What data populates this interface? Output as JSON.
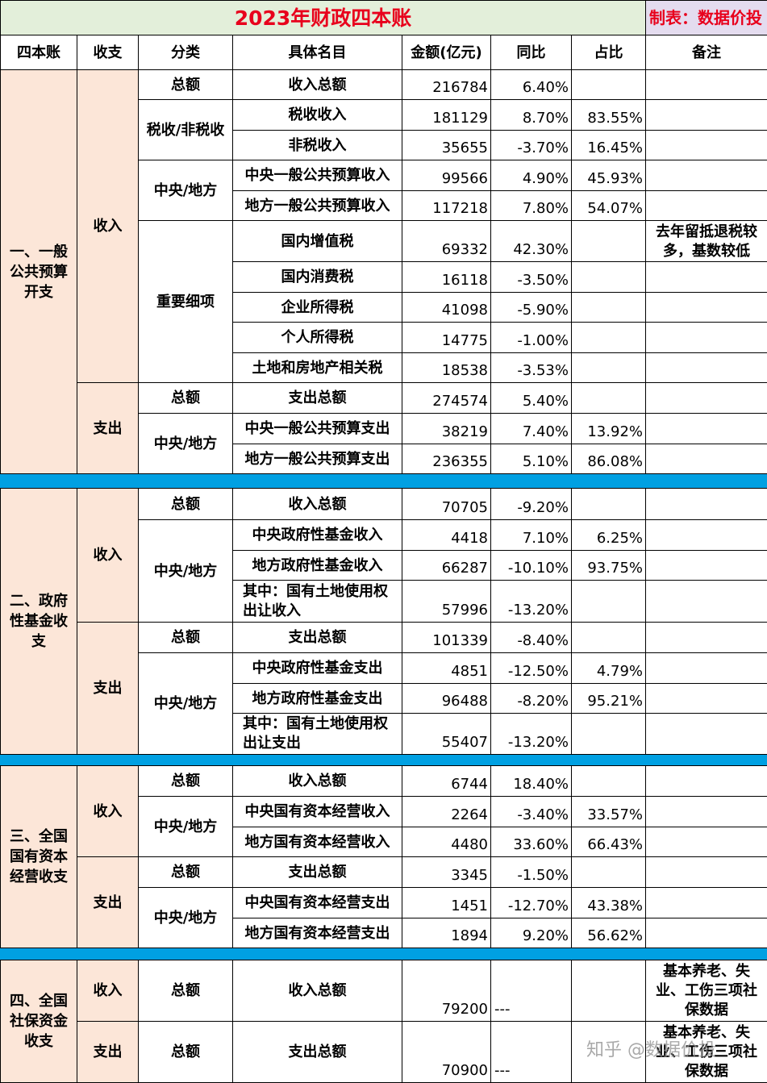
{
  "title": "2023年财政四本账",
  "maker": "制表：数据价投",
  "headers": [
    "四本账",
    "收支",
    "分类",
    "具体名目",
    "金额(亿元)",
    "同比",
    "占比",
    "备注"
  ],
  "sections": {
    "s1": {
      "name": "一、一般公共预算开支",
      "income": "收入",
      "expense": "支出",
      "rows": [
        {
          "cat": "总额",
          "name": "收入总额",
          "amount": "216784",
          "yoy": "6.40%",
          "share": "",
          "note": ""
        },
        {
          "cat": "税收/非税收",
          "name": "税收收入",
          "amount": "181129",
          "yoy": "8.70%",
          "share": "83.55%",
          "note": ""
        },
        {
          "cat": "",
          "name": "非税收入",
          "amount": "35655",
          "yoy": "-3.70%",
          "share": "16.45%",
          "note": ""
        },
        {
          "cat": "中央/地方",
          "name": "中央一般公共预算收入",
          "amount": "99566",
          "yoy": "4.90%",
          "share": "45.93%",
          "note": ""
        },
        {
          "cat": "",
          "name": "地方一般公共预算收入",
          "amount": "117218",
          "yoy": "7.80%",
          "share": "54.07%",
          "note": ""
        },
        {
          "cat": "重要细项",
          "name": "国内增值税",
          "amount": "69332",
          "yoy": "42.30%",
          "share": "",
          "note": "去年留抵退税较多，基数较低"
        },
        {
          "cat": "",
          "name": "国内消费税",
          "amount": "16118",
          "yoy": "-3.50%",
          "share": "",
          "note": ""
        },
        {
          "cat": "",
          "name": "企业所得税",
          "amount": "41098",
          "yoy": "-5.90%",
          "share": "",
          "note": ""
        },
        {
          "cat": "",
          "name": "个人所得税",
          "amount": "14775",
          "yoy": "-1.00%",
          "share": "",
          "note": ""
        },
        {
          "cat": "",
          "name": "土地和房地产相关税",
          "amount": "18538",
          "yoy": "-3.53%",
          "share": "",
          "note": ""
        },
        {
          "cat": "总额",
          "name": "支出总额",
          "amount": "274574",
          "yoy": "5.40%",
          "share": "",
          "note": ""
        },
        {
          "cat": "中央/地方",
          "name": "中央一般公共预算支出",
          "amount": "38219",
          "yoy": "7.40%",
          "share": "13.92%",
          "note": ""
        },
        {
          "cat": "",
          "name": "地方一般公共预算支出",
          "amount": "236355",
          "yoy": "5.10%",
          "share": "86.08%",
          "note": ""
        }
      ]
    },
    "s2": {
      "name": "二、政府性基金收支",
      "income": "收入",
      "expense": "支出",
      "rows": [
        {
          "cat": "总额",
          "name": "收入总额",
          "amount": "70705",
          "yoy": "-9.20%",
          "share": ""
        },
        {
          "cat": "中央/地方",
          "name": "中央政府性基金收入",
          "amount": "4418",
          "yoy": "7.10%",
          "share": "6.25%"
        },
        {
          "cat": "",
          "name": "地方政府性基金收入",
          "amount": "66287",
          "yoy": "-10.10%",
          "share": "93.75%"
        },
        {
          "cat": "",
          "name": "其中：国有土地使用权出让收入",
          "amount": "57996",
          "yoy": "-13.20%",
          "share": ""
        },
        {
          "cat": "总额",
          "name": "支出总额",
          "amount": "101339",
          "yoy": "-8.40%",
          "share": ""
        },
        {
          "cat": "中央/地方",
          "name": "中央政府性基金支出",
          "amount": "4851",
          "yoy": "-12.50%",
          "share": "4.79%"
        },
        {
          "cat": "",
          "name": "地方政府性基金支出",
          "amount": "96488",
          "yoy": "-8.20%",
          "share": "95.21%"
        },
        {
          "cat": "",
          "name": "其中：国有土地使用权出让支出",
          "amount": "55407",
          "yoy": "-13.20%",
          "share": ""
        }
      ]
    },
    "s3": {
      "name": "三、全国国有资本经营收支",
      "income": "收入",
      "expense": "支出",
      "rows": [
        {
          "cat": "总额",
          "name": "收入总额",
          "amount": "6744",
          "yoy": "18.40%",
          "share": ""
        },
        {
          "cat": "中央/地方",
          "name": "中央国有资本经营收入",
          "amount": "2264",
          "yoy": "-3.40%",
          "share": "33.57%"
        },
        {
          "cat": "",
          "name": "地方国有资本经营收入",
          "amount": "4480",
          "yoy": "33.60%",
          "share": "66.43%"
        },
        {
          "cat": "总额",
          "name": "支出总额",
          "amount": "3345",
          "yoy": "-1.50%",
          "share": ""
        },
        {
          "cat": "中央/地方",
          "name": "中央国有资本经营支出",
          "amount": "1451",
          "yoy": "-12.70%",
          "share": "43.38%"
        },
        {
          "cat": "",
          "name": "地方国有资本经营支出",
          "amount": "1894",
          "yoy": "9.20%",
          "share": "56.62%"
        }
      ]
    },
    "s4": {
      "name": "四、全国社保资金收支",
      "income": "收入",
      "expense": "支出",
      "rows": [
        {
          "cat": "总额",
          "name": "收入总额",
          "amount": "79200",
          "yoy": "---",
          "share": "",
          "note": "基本养老、失业、工伤三项社保数据"
        },
        {
          "cat": "总额",
          "name": "支出总额",
          "amount": "70900",
          "yoy": "---",
          "share": "",
          "note": "基本养老、失业、工伤三项社保数据"
        }
      ]
    }
  },
  "watermark": "知乎 @数据价投"
}
